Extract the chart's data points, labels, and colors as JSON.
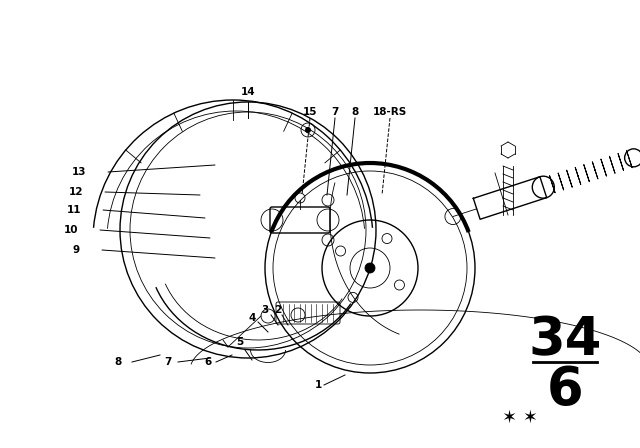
{
  "background_color": "#ffffff",
  "line_color": "#000000",
  "fig_width": 6.4,
  "fig_height": 4.48,
  "dpi": 100,
  "part_number_top": "34",
  "part_number_bottom": "6"
}
